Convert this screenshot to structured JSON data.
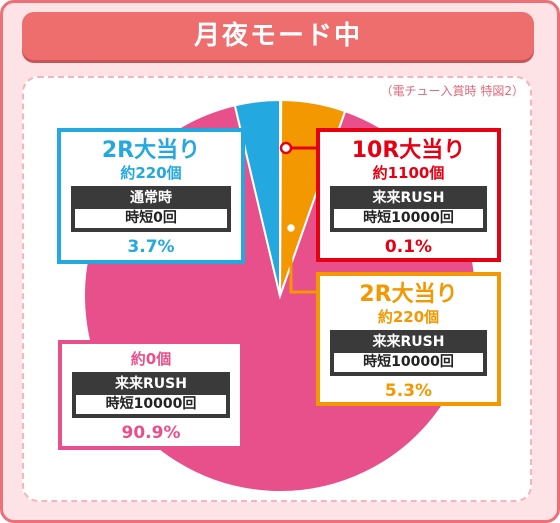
{
  "header": {
    "title": "月夜モード中"
  },
  "note": "（電チュー入賞時 特図2）",
  "colors": {
    "blue": "#23a8e0",
    "red": "#e60012",
    "orange": "#f39800",
    "pink": "#e8508c"
  },
  "chart_data": {
    "type": "pie",
    "title": "月夜モード中",
    "slices": [
      {
        "key": "red",
        "label": "10R大当り",
        "payout": "約1100個",
        "mode": "来来RUSH",
        "jitan": "時短10000回",
        "value": 0.1,
        "percent": "0.1%",
        "color": "#e60012"
      },
      {
        "key": "orange",
        "label": "2R大当り",
        "payout": "約220個",
        "mode": "来来RUSH",
        "jitan": "時短10000回",
        "value": 5.3,
        "percent": "5.3%",
        "color": "#f39800"
      },
      {
        "key": "pink",
        "label": "",
        "payout": "約0個",
        "mode": "来来RUSH",
        "jitan": "時短10000回",
        "value": 90.9,
        "percent": "90.9%",
        "color": "#e8508c"
      },
      {
        "key": "blue",
        "label": "2R大当り",
        "payout": "約220個",
        "mode": "通常時",
        "jitan": "時短0回",
        "value": 3.7,
        "percent": "3.7%",
        "color": "#23a8e0"
      }
    ]
  }
}
